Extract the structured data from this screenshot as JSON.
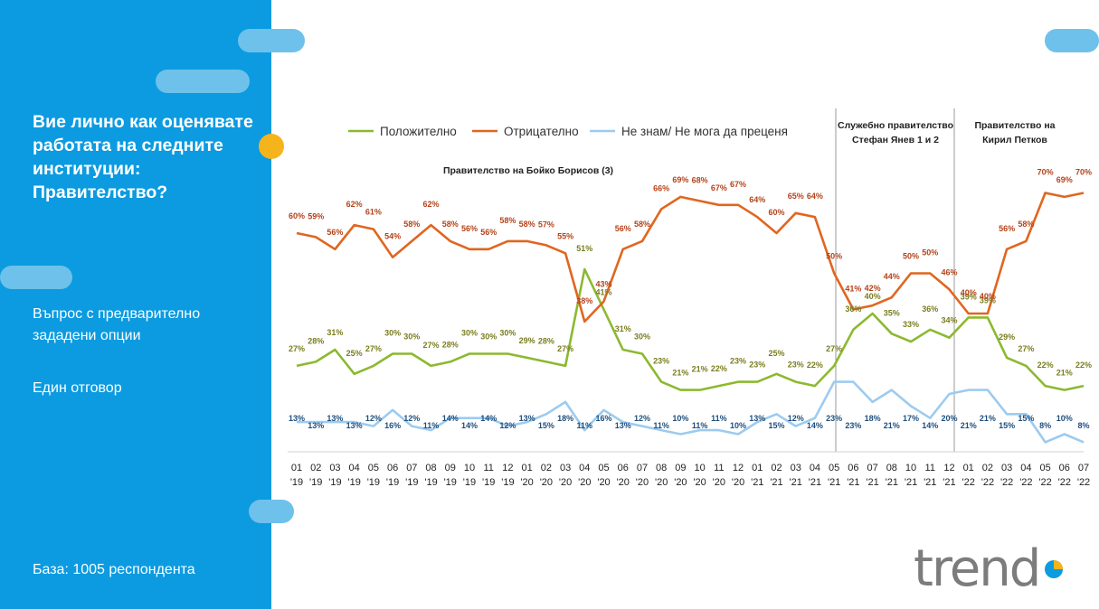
{
  "sidebar": {
    "question": "Вие лично как оценявате работата на следните институции: Правителство?",
    "option1": "Въпрос с предварително зададени опции",
    "option2": "Един отговор",
    "base": "База:  1005 респондента"
  },
  "logo_text": "trend",
  "colors": {
    "sidebar": "#0c9be0",
    "pill": "#6ec1ea",
    "positive": "#8cb92f",
    "negative": "#e0661f",
    "dontknow": "#9dcbef",
    "dot": "#f5b41c"
  },
  "chart_data": {
    "type": "line",
    "title": "",
    "xlabel": "",
    "ylabel": "",
    "grid": false,
    "legend_position": "top",
    "x": [
      "01 '19",
      "02 '19",
      "03 '19",
      "04 '19",
      "05 '19",
      "06 '19",
      "07 '19",
      "08 '19",
      "09 '19",
      "10 '19",
      "11 '19",
      "12 '19",
      "01 '20",
      "02 '20",
      "03 '20",
      "04 '20",
      "05 '20",
      "06 '20",
      "07 '20",
      "08 '20",
      "09 '20",
      "10 '20",
      "11 '20",
      "12 '20",
      "01 '21",
      "02 '21",
      "03 '21",
      "04 '21",
      "05 '21",
      "06 '21",
      "07 '21",
      "08 '21",
      "10 '21",
      "11 '21",
      "12 '21",
      "01 '22",
      "02 '22",
      "03 '22",
      "04 '22",
      "05 '22",
      "06 '22",
      "07 '22"
    ],
    "series": [
      {
        "name": "Положително",
        "color": "#8cb92f",
        "values": [
          27,
          28,
          31,
          25,
          27,
          30,
          30,
          27,
          28,
          30,
          30,
          30,
          29,
          28,
          27,
          51,
          41,
          31,
          30,
          23,
          21,
          21,
          22,
          23,
          23,
          25,
          23,
          22,
          27,
          36,
          40,
          35,
          33,
          36,
          34,
          39,
          39,
          29,
          27,
          22,
          21,
          22
        ]
      },
      {
        "name": "Отрицателно",
        "color": "#e0661f",
        "values": [
          60,
          59,
          56,
          62,
          61,
          54,
          58,
          62,
          58,
          56,
          56,
          58,
          58,
          57,
          55,
          38,
          43,
          56,
          58,
          66,
          69,
          68,
          67,
          67,
          64,
          60,
          65,
          64,
          50,
          41,
          42,
          44,
          50,
          50,
          46,
          40,
          40,
          56,
          58,
          70,
          69,
          70
        ]
      },
      {
        "name": "Не знам/ Не мога да преценя",
        "color": "#9dcbef",
        "values": [
          13,
          13,
          13,
          13,
          12,
          16,
          12,
          11,
          14,
          14,
          14,
          12,
          13,
          15,
          18,
          11,
          16,
          13,
          12,
          11,
          10,
          11,
          11,
          10,
          13,
          15,
          12,
          14,
          23,
          23,
          18,
          21,
          17,
          14,
          20,
          21,
          21,
          15,
          15,
          8,
          10,
          8
        ]
      }
    ],
    "annotations": {
      "period1": "Правителство  на Бойко Борисов  (3)",
      "period2": "Служебно правителство Стефан Янев 1 и 2",
      "period3": "Правителство  на Кирил  Петков"
    }
  }
}
